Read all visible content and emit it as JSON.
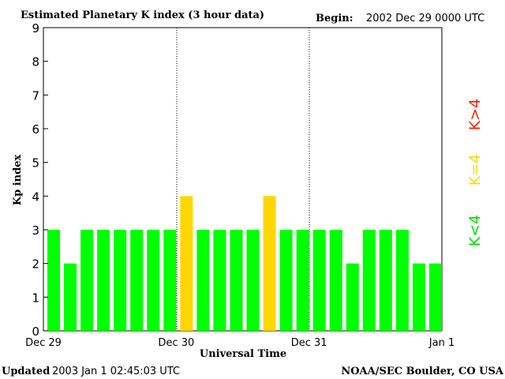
{
  "colors": {
    "low": "#00ff00",
    "equal": "#ffd700",
    "high": "#ff2000",
    "axis": "#000000",
    "background": "#ffffff"
  },
  "header": {
    "title": "Estimated Planetary K index (3 hour data)",
    "begin_label": "Begin:",
    "begin_value": "2002 Dec 29 0000 UTC"
  },
  "footer": {
    "updated_label": "Updated",
    "updated_value": "2003 Jan  1 02:45:03 UTC",
    "source": "NOAA/SEC Boulder, CO USA"
  },
  "legend": {
    "low": "K<4",
    "equal": "K=4",
    "high": "K>4"
  },
  "chart_data": {
    "type": "bar",
    "title": "Estimated Planetary K index (3 hour data)",
    "xlabel": "Universal Time",
    "ylabel": "Kp index",
    "ylim": [
      0,
      9
    ],
    "yticks": [
      0,
      1,
      2,
      3,
      4,
      5,
      6,
      7,
      8,
      9
    ],
    "xticks": [
      "Dec 29",
      "Dec 30",
      "Dec 31",
      "Jan 1"
    ],
    "interval_hours": 3,
    "values": [
      3,
      2,
      3,
      3,
      3,
      3,
      3,
      3,
      4,
      3,
      3,
      3,
      3,
      4,
      3,
      3,
      3,
      3,
      2,
      3,
      3,
      3,
      2,
      2
    ]
  }
}
